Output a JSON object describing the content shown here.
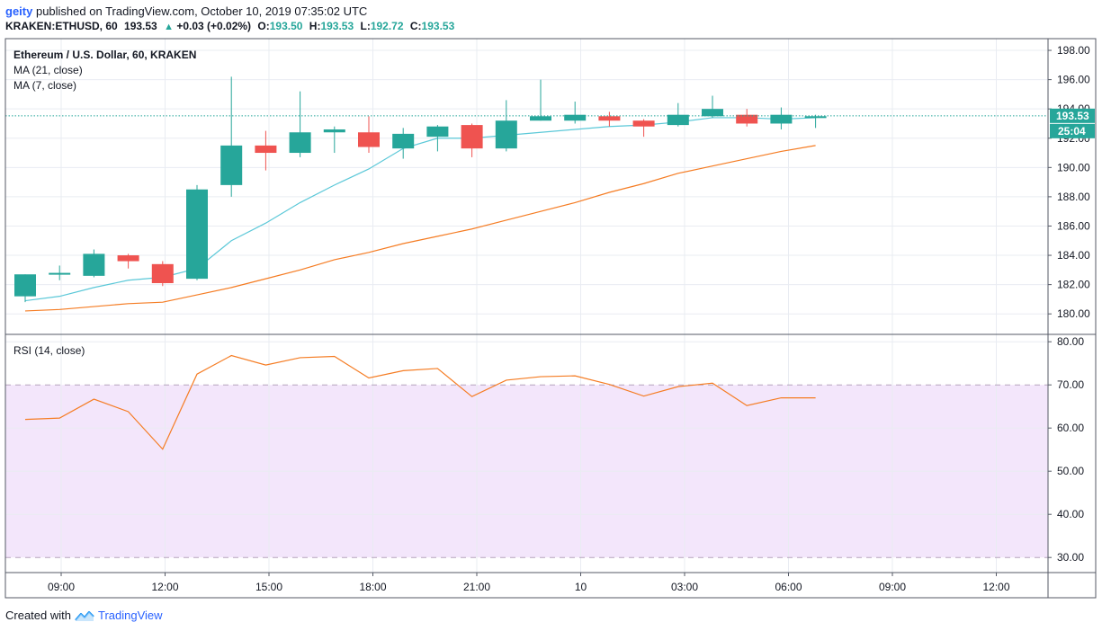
{
  "header": {
    "publisher": "geity",
    "published_text": "published on TradingView.com, October 10, 2019 07:35:02 UTC",
    "symbol": "KRAKEN:ETHUSD, 60",
    "last": "193.53",
    "change": "+0.03 (+0.02%)",
    "o_label": "O:",
    "o_val": "193.50",
    "h_label": "H:",
    "h_val": "193.53",
    "l_label": "L:",
    "l_val": "192.72",
    "c_label": "C:",
    "c_val": "193.53"
  },
  "footer": {
    "created_with": "Created with",
    "brand": "TradingView"
  },
  "colors": {
    "up": "#26a69a",
    "down": "#ef5350",
    "ma7": "#5bc8d8",
    "ma21": "#f57c23",
    "rsi": "#f57c23",
    "rsi_band": "#f3e6fb",
    "grid": "#e9ecf2",
    "border": "#555a66"
  },
  "chart_data": [
    {
      "type": "candlestick",
      "title": "Ethereum / U.S. Dollar, 60, KRAKEN",
      "studies": [
        "MA (21, close)",
        "MA (7, close)"
      ],
      "ylim": [
        178.6,
        198.8
      ],
      "y_ticks": [
        "180.00",
        "182.00",
        "184.00",
        "186.00",
        "188.00",
        "190.00",
        "192.00",
        "194.00",
        "196.00",
        "198.00"
      ],
      "x_ticks": [
        "09:00",
        "12:00",
        "15:00",
        "18:00",
        "21:00",
        "10",
        "03:00",
        "06:00",
        "09:00",
        "12:00"
      ],
      "last_price_label": "193.53",
      "countdown_label": "25:04",
      "last_price": 193.53,
      "candles": [
        {
          "o": 181.2,
          "h": 182.7,
          "l": 180.8,
          "c": 182.7
        },
        {
          "o": 182.7,
          "h": 183.3,
          "l": 182.3,
          "c": 182.8
        },
        {
          "o": 182.6,
          "h": 184.4,
          "l": 182.5,
          "c": 184.1
        },
        {
          "o": 184.0,
          "h": 184.1,
          "l": 183.1,
          "c": 183.6
        },
        {
          "o": 183.4,
          "h": 183.6,
          "l": 181.9,
          "c": 182.1
        },
        {
          "o": 182.4,
          "h": 188.8,
          "l": 182.3,
          "c": 188.5
        },
        {
          "o": 188.8,
          "h": 196.2,
          "l": 188.0,
          "c": 191.5
        },
        {
          "o": 191.5,
          "h": 192.5,
          "l": 189.8,
          "c": 191.0
        },
        {
          "o": 191.0,
          "h": 195.2,
          "l": 190.7,
          "c": 192.4
        },
        {
          "o": 192.4,
          "h": 192.8,
          "l": 191.0,
          "c": 192.6
        },
        {
          "o": 192.4,
          "h": 193.5,
          "l": 191.0,
          "c": 191.4
        },
        {
          "o": 191.3,
          "h": 192.7,
          "l": 190.6,
          "c": 192.3
        },
        {
          "o": 192.1,
          "h": 192.9,
          "l": 191.1,
          "c": 192.8
        },
        {
          "o": 192.9,
          "h": 193.0,
          "l": 190.7,
          "c": 191.3
        },
        {
          "o": 191.3,
          "h": 194.6,
          "l": 191.1,
          "c": 193.2
        },
        {
          "o": 193.2,
          "h": 196.0,
          "l": 193.2,
          "c": 193.5
        },
        {
          "o": 193.2,
          "h": 194.5,
          "l": 193.0,
          "c": 193.6
        },
        {
          "o": 193.5,
          "h": 193.8,
          "l": 192.8,
          "c": 193.2
        },
        {
          "o": 193.2,
          "h": 193.3,
          "l": 192.1,
          "c": 192.8
        },
        {
          "o": 192.9,
          "h": 194.4,
          "l": 192.8,
          "c": 193.6
        },
        {
          "o": 193.5,
          "h": 194.9,
          "l": 193.4,
          "c": 194.0
        },
        {
          "o": 193.6,
          "h": 194.0,
          "l": 192.8,
          "c": 193.0
        },
        {
          "o": 193.0,
          "h": 194.1,
          "l": 192.6,
          "c": 193.6
        },
        {
          "o": 193.5,
          "h": 193.6,
          "l": 192.7,
          "c": 193.5
        }
      ],
      "series": [
        {
          "name": "MA (21, close)",
          "values": [
            180.2,
            180.3,
            180.5,
            180.7,
            180.8,
            181.3,
            181.8,
            182.4,
            183.0,
            183.7,
            184.2,
            184.8,
            185.3,
            185.8,
            186.4,
            187.0,
            187.6,
            188.3,
            188.9,
            189.6,
            190.1,
            190.6,
            191.1,
            191.5
          ]
        },
        {
          "name": "MA (7, close)",
          "values": [
            180.9,
            181.2,
            181.8,
            182.3,
            182.5,
            183.1,
            185.0,
            186.2,
            187.6,
            188.8,
            189.9,
            191.3,
            192.0,
            192.0,
            192.2,
            192.4,
            192.6,
            192.8,
            192.9,
            193.1,
            193.4,
            193.4,
            193.3,
            193.4
          ]
        }
      ]
    },
    {
      "type": "line",
      "title": "RSI (14, close)",
      "ylim": [
        26.5,
        81.5
      ],
      "y_ticks": [
        "30.00",
        "40.00",
        "50.00",
        "60.00",
        "70.00",
        "80.00"
      ],
      "band": [
        30,
        70
      ],
      "series": [
        {
          "name": "RSI (14, close)",
          "values": [
            62.0,
            62.3,
            66.7,
            63.8,
            55.1,
            72.5,
            76.8,
            74.6,
            76.3,
            76.6,
            71.6,
            73.3,
            73.8,
            67.3,
            71.1,
            71.9,
            72.1,
            70.1,
            67.4,
            69.6,
            70.4,
            65.2,
            67.0,
            67.0
          ]
        }
      ]
    }
  ]
}
